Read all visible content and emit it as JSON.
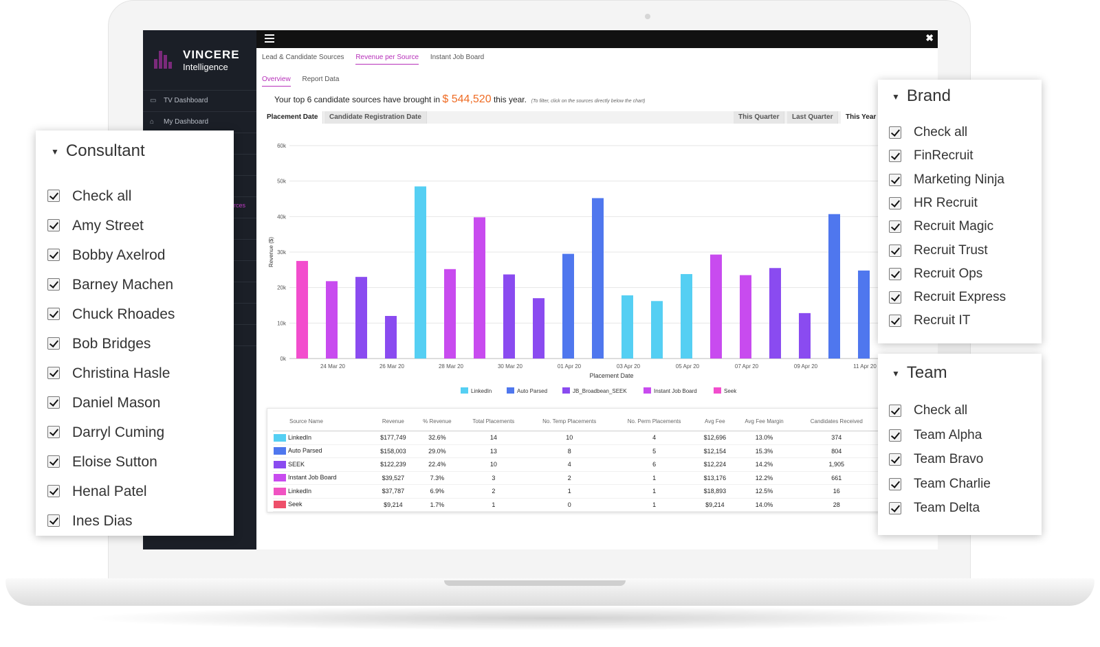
{
  "logo": {
    "title": "VINCERE",
    "subtitle": "Intelligence"
  },
  "sidebar": {
    "items": [
      {
        "label": "TV Dashboard",
        "icon": "monitor-icon"
      },
      {
        "label": "My Dashboard",
        "icon": "home-icon"
      }
    ],
    "active_fragment": "rces"
  },
  "tabs": [
    "Lead & Candidate Sources",
    "Revenue per Source",
    "Instant Job Board"
  ],
  "subtabs": [
    "Overview",
    "Report Data"
  ],
  "headline": {
    "prefix": "Your top 6 candidate sources have brought in",
    "amount": "$ 544,520",
    "suffix": "this year.",
    "hint": "(To filter, click on the sources directly below the chart)"
  },
  "date_buttons": [
    "Placement Date",
    "Candidate Registration Date"
  ],
  "period_buttons": [
    "This Quarter",
    "Last Quarter",
    "This Year"
  ],
  "colors": {
    "LinkedIn": "#55cff3",
    "Auto Parsed": "#4f77ee",
    "JB_Broadbean_SEEK": "#8a4bf0",
    "Instant Job Board": "#c84bef",
    "Seek": "#f24dcd",
    "LinkedIn2": "#f053c2",
    "Seek2": "#ee4f6a",
    "amount": "#ef6b23",
    "accent": "#b62fb9"
  },
  "chart_data": {
    "type": "bar",
    "xlabel": "Placement Date",
    "ylabel": "Revenue ($)",
    "ylim": [
      0,
      60000
    ],
    "yticks": [
      "0k",
      "10k",
      "20k",
      "30k",
      "40k",
      "50k",
      "60k"
    ],
    "xticks": [
      "24 Mar 20",
      "26 Mar 20",
      "28 Mar 20",
      "30 Mar 20",
      "01 Apr 20",
      "03 Apr 20",
      "05 Apr 20",
      "07 Apr 20",
      "09 Apr 20",
      "11 Apr 20"
    ],
    "legend": [
      "LinkedIn",
      "Auto Parsed",
      "JB_Broadbean_SEEK",
      "Instant Job Board",
      "Seek"
    ],
    "bars": [
      {
        "series": "Seek",
        "value": 27500
      },
      {
        "series": "Instant Job Board",
        "value": 21800
      },
      {
        "series": "JB_Broadbean_SEEK",
        "value": 23000
      },
      {
        "series": "JB_Broadbean_SEEK",
        "value": 12000
      },
      {
        "series": "LinkedIn",
        "value": 48500
      },
      {
        "series": "Instant Job Board",
        "value": 25200
      },
      {
        "series": "Instant Job Board",
        "value": 39800
      },
      {
        "series": "JB_Broadbean_SEEK",
        "value": 23700
      },
      {
        "series": "JB_Broadbean_SEEK",
        "value": 17000
      },
      {
        "series": "Auto Parsed",
        "value": 29500
      },
      {
        "series": "Auto Parsed",
        "value": 45200
      },
      {
        "series": "LinkedIn",
        "value": 17800
      },
      {
        "series": "LinkedIn",
        "value": 16200
      },
      {
        "series": "LinkedIn",
        "value": 23800
      },
      {
        "series": "Instant Job Board",
        "value": 29300
      },
      {
        "series": "Instant Job Board",
        "value": 23500
      },
      {
        "series": "JB_Broadbean_SEEK",
        "value": 25500
      },
      {
        "series": "JB_Broadbean_SEEK",
        "value": 12800
      },
      {
        "series": "Auto Parsed",
        "value": 40700
      },
      {
        "series": "Auto Parsed",
        "value": 24800
      }
    ]
  },
  "table": {
    "headers": [
      "Source Name",
      "Revenue",
      "% Revenue",
      "Total Placements",
      "No. Temp Placements",
      "No. Perm Placements",
      "Avg Fee",
      "Avg Fee Margin",
      "Candidates Received"
    ],
    "rows": [
      {
        "color": "#55cff3",
        "cells": [
          "LinkedIn",
          "$177,749",
          "32.6%",
          "14",
          "10",
          "4",
          "$12,696",
          "13.0%",
          "374"
        ]
      },
      {
        "color": "#4f77ee",
        "cells": [
          "Auto Parsed",
          "$158,003",
          "29.0%",
          "13",
          "8",
          "5",
          "$12,154",
          "15.3%",
          "804"
        ]
      },
      {
        "color": "#8a4bf0",
        "cells": [
          "SEEK",
          "$122,239",
          "22.4%",
          "10",
          "4",
          "6",
          "$12,224",
          "14.2%",
          "1,905"
        ]
      },
      {
        "color": "#c84bef",
        "cells": [
          "Instant Job Board",
          "$39,527",
          "7.3%",
          "3",
          "2",
          "1",
          "$13,176",
          "12.2%",
          "661"
        ]
      },
      {
        "color": "#f053c2",
        "cells": [
          "LinkedIn",
          "$37,787",
          "6.9%",
          "2",
          "1",
          "1",
          "$18,893",
          "12.5%",
          "16"
        ]
      },
      {
        "color": "#ee4f6a",
        "cells": [
          "Seek",
          "$9,214",
          "1.7%",
          "1",
          "0",
          "1",
          "$9,214",
          "14.0%",
          "28"
        ]
      }
    ]
  },
  "consultant": {
    "title": "Consultant",
    "items": [
      "Check all",
      "Amy Street",
      "Bobby Axelrod",
      "Barney Machen",
      "Chuck Rhoades",
      "Bob Bridges",
      "Christina Hasle",
      "Daniel Mason",
      "Darryl Cuming",
      "Eloise Sutton",
      "Henal Patel",
      "Ines Dias"
    ]
  },
  "brand": {
    "title": "Brand",
    "items": [
      "Check all",
      "FinRecruit",
      "Marketing Ninja",
      "HR Recruit",
      "Recruit Magic",
      "Recruit Trust",
      "Recruit Ops",
      "Recruit Express",
      "Recruit IT"
    ]
  },
  "team": {
    "title": "Team",
    "items": [
      "Check all",
      "Team Alpha",
      "Team Bravo",
      "Team Charlie",
      "Team Delta"
    ]
  }
}
